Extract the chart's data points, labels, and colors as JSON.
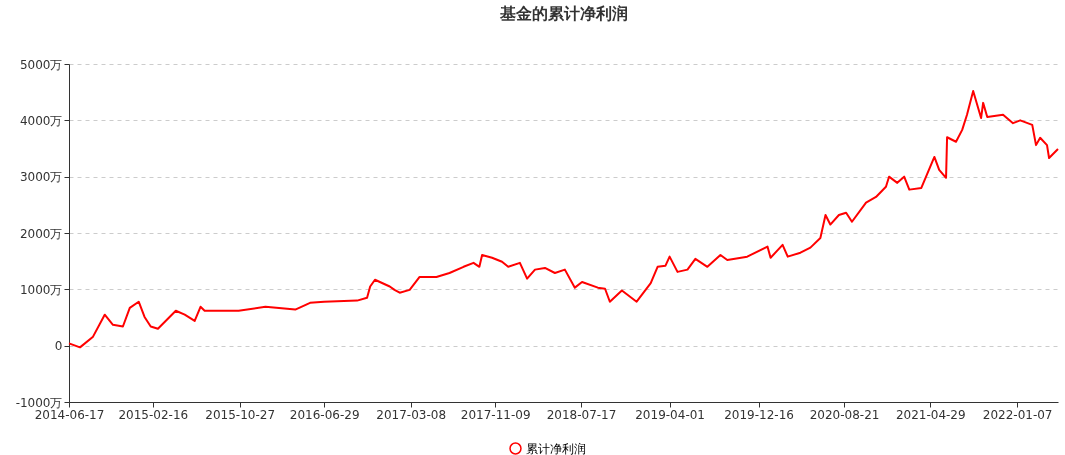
{
  "chart_data": {
    "type": "line",
    "title": "基金的累计净利润",
    "x": [
      "2014-06-17",
      "2014-07-19",
      "2014-08-26",
      "2014-09-29",
      "2014-10-23",
      "2014-11-21",
      "2014-12-11",
      "2015-01-06",
      "2015-01-23",
      "2015-02-10",
      "2015-03-03",
      "2015-04-24",
      "2015-05-20",
      "2015-06-18",
      "2015-07-05",
      "2015-07-17",
      "2015-10-24",
      "2016-01-10",
      "2016-04-06",
      "2016-05-19",
      "2016-06-29",
      "2016-10-03",
      "2016-11-01",
      "2016-11-10",
      "2016-11-24",
      "2017-01-06",
      "2017-01-20",
      "2017-02-04",
      "2017-03-05",
      "2017-04-03",
      "2017-05-22",
      "2017-06-29",
      "2017-08-09",
      "2017-09-07",
      "2017-09-24",
      "2017-10-02",
      "2017-10-31",
      "2017-11-29",
      "2017-12-17",
      "2018-01-20",
      "2018-02-10",
      "2018-03-05",
      "2018-04-03",
      "2018-05-02",
      "2018-05-31",
      "2018-06-29",
      "2018-07-20",
      "2018-09-04",
      "2018-09-25",
      "2018-10-09",
      "2018-11-13",
      "2018-12-26",
      "2019-02-05",
      "2019-02-25",
      "2019-03-20",
      "2019-04-01",
      "2019-04-24",
      "2019-05-23",
      "2019-06-15",
      "2019-07-20",
      "2019-08-27",
      "2019-09-16",
      "2019-11-13",
      "2020-01-11",
      "2020-01-20",
      "2020-02-24",
      "2020-03-10",
      "2020-04-16",
      "2020-05-15",
      "2020-06-13",
      "2020-06-28",
      "2020-07-12",
      "2020-08-06",
      "2020-08-27",
      "2020-09-13",
      "2020-10-24",
      "2020-11-22",
      "2020-12-21",
      "2020-12-30",
      "2021-01-23",
      "2021-02-12",
      "2021-02-27",
      "2021-04-03",
      "2021-05-11",
      "2021-05-25",
      "2021-06-14",
      "2021-06-17",
      "2021-07-13",
      "2021-07-31",
      "2021-08-14",
      "2021-09-01",
      "2021-09-24",
      "2021-09-30",
      "2021-10-12",
      "2021-11-27",
      "2021-12-26",
      "2022-01-16",
      "2022-02-20",
      "2022-03-03",
      "2022-03-15",
      "2022-04-04",
      "2022-04-10",
      "2022-05-06"
    ],
    "series": [
      {
        "name": "累计净利润",
        "color": "#ff0000",
        "values": [
          40,
          -30,
          160,
          550,
          370,
          340,
          670,
          780,
          510,
          340,
          300,
          620,
          550,
          440,
          690,
          620,
          620,
          690,
          640,
          760,
          780,
          800,
          850,
          1050,
          1170,
          1050,
          990,
          940,
          990,
          1220,
          1220,
          1290,
          1400,
          1470,
          1400,
          1610,
          1560,
          1490,
          1400,
          1470,
          1190,
          1350,
          1380,
          1290,
          1350,
          1030,
          1130,
          1030,
          1010,
          780,
          980,
          780,
          1110,
          1400,
          1420,
          1580,
          1310,
          1350,
          1540,
          1400,
          1610,
          1520,
          1580,
          1760,
          1560,
          1790,
          1580,
          1650,
          1740,
          1910,
          2320,
          2150,
          2320,
          2360,
          2200,
          2540,
          2640,
          2820,
          3000,
          2890,
          3000,
          2770,
          2800,
          3350,
          3120,
          2980,
          3700,
          3620,
          3830,
          4100,
          4520,
          4040,
          4310,
          4060,
          4100,
          3950,
          4000,
          3920,
          3560,
          3690,
          3560,
          3330,
          3490
        ]
      }
    ],
    "xlim": [
      "2014-06-17",
      "2022-05-06"
    ],
    "xticks": [
      "2014-06-17",
      "2015-02-16",
      "2015-10-27",
      "2016-06-29",
      "2017-03-08",
      "2017-11-09",
      "2018-07-17",
      "2019-04-01",
      "2019-12-16",
      "2020-08-21",
      "2021-04-29",
      "2022-01-07"
    ],
    "ylim": [
      -1000,
      5000
    ],
    "yticks": [
      {
        "value": -1000,
        "label": "-1000万"
      },
      0,
      {
        "value": 1000,
        "label": "1000万"
      },
      {
        "value": 2000,
        "label": "2000万"
      },
      {
        "value": 3000,
        "label": "3000万"
      },
      {
        "value": 4000,
        "label": "4000万"
      },
      {
        "value": 5000,
        "label": "5000万"
      }
    ],
    "grid": "y",
    "legend": "bottom",
    "line_style": "solid"
  }
}
